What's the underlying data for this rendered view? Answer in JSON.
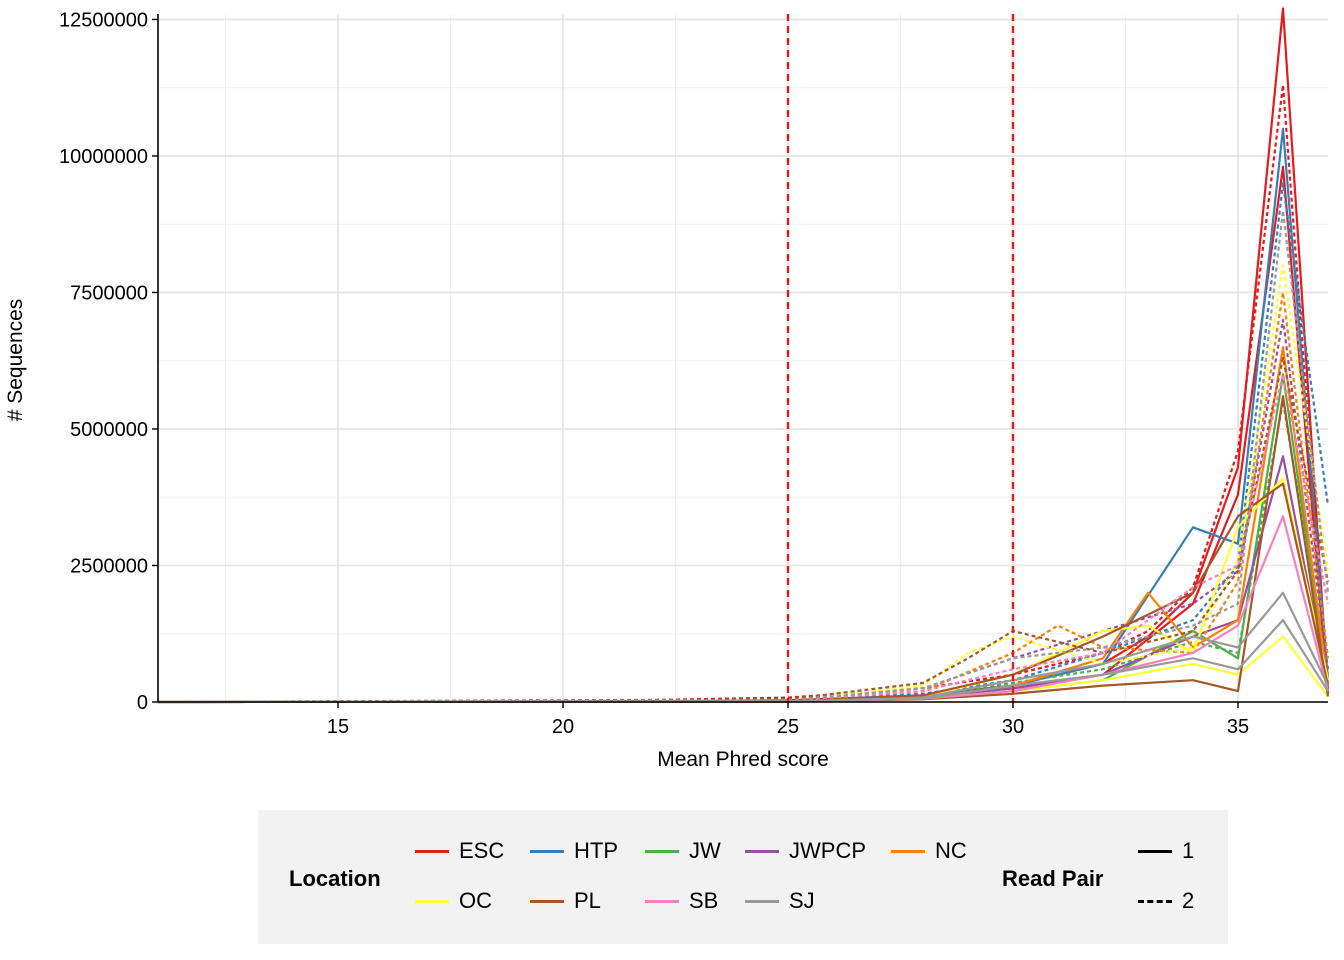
{
  "chart_data": {
    "type": "line",
    "xlabel": "Mean Phred score",
    "ylabel": "# Sequences",
    "xlim": [
      11,
      37
    ],
    "ylim": [
      0,
      12600000
    ],
    "x_ticks": [
      15,
      20,
      25,
      30,
      35
    ],
    "y_ticks": [
      0,
      2500000,
      5000000,
      7500000,
      10000000,
      12500000
    ],
    "y_tick_labels": [
      "0",
      "2500000",
      "5000000",
      "7500000",
      "10000000",
      "12500000"
    ],
    "x_tick_labels": [
      "15",
      "20",
      "25",
      "30",
      "35"
    ],
    "grid": true,
    "reference_lines": {
      "x": [
        25,
        30
      ],
      "color": "#e41a1c",
      "style": "dashed"
    },
    "legend_position": "bottom",
    "location_colors": {
      "ESC": "#e41a1c",
      "HTP": "#377eb8",
      "JW": "#4daf4a",
      "JWPCP": "#984ea3",
      "NC": "#ff7f00",
      "OC": "#ffff33",
      "PL": "#a65628",
      "SB": "#f781bf",
      "SJ": "#999999"
    },
    "series": [
      {
        "location": "ESC",
        "read_pair": "1",
        "x": [
          11,
          20,
          25,
          28,
          30,
          32,
          33,
          34,
          35,
          36,
          37
        ],
        "values": [
          0,
          5000,
          30000,
          120000,
          300000,
          700000,
          1200000,
          2000000,
          4300000,
          12700000,
          200000
        ]
      },
      {
        "location": "ESC",
        "read_pair": "2",
        "x": [
          11,
          20,
          25,
          28,
          30,
          32,
          33,
          34,
          35,
          36,
          37
        ],
        "values": [
          0,
          8000,
          80000,
          250000,
          500000,
          900000,
          1300000,
          2100000,
          4600000,
          11300000,
          300000
        ]
      },
      {
        "location": "ESC",
        "read_pair": "1",
        "x": [
          11,
          25,
          28,
          30,
          32,
          34,
          35,
          36,
          37
        ],
        "values": [
          0,
          20000,
          100000,
          250000,
          500000,
          1800000,
          3800000,
          9800000,
          150000
        ]
      },
      {
        "location": "HTP",
        "read_pair": "1",
        "x": [
          11,
          25,
          28,
          30,
          32,
          34,
          35,
          36,
          37
        ],
        "values": [
          0,
          15000,
          90000,
          300000,
          700000,
          3200000,
          2900000,
          10500000,
          400000
        ]
      },
      {
        "location": "HTP",
        "read_pair": "2",
        "x": [
          11,
          25,
          28,
          30,
          32,
          34,
          35,
          36,
          37
        ],
        "values": [
          0,
          30000,
          150000,
          400000,
          900000,
          1500000,
          2500000,
          9500000,
          3600000
        ]
      },
      {
        "location": "JW",
        "read_pair": "1",
        "x": [
          11,
          25,
          28,
          30,
          32,
          34,
          35,
          36,
          37
        ],
        "values": [
          0,
          10000,
          60000,
          200000,
          400000,
          1300000,
          800000,
          6000000,
          300000
        ]
      },
      {
        "location": "JW",
        "read_pair": "2",
        "x": [
          11,
          25,
          28,
          30,
          32,
          34,
          35,
          36,
          37
        ],
        "values": [
          0,
          20000,
          100000,
          350000,
          600000,
          1100000,
          900000,
          5500000,
          500000
        ]
      },
      {
        "location": "JWPCP",
        "read_pair": "1",
        "x": [
          11,
          25,
          28,
          30,
          32,
          34,
          35,
          36,
          37
        ],
        "values": [
          0,
          10000,
          70000,
          250000,
          500000,
          1200000,
          1500000,
          4500000,
          300000
        ]
      },
      {
        "location": "JWPCP",
        "read_pair": "2",
        "x": [
          11,
          25,
          28,
          30,
          32,
          34,
          35,
          36,
          37
        ],
        "values": [
          0,
          40000,
          250000,
          800000,
          1300000,
          1800000,
          2400000,
          7000000,
          600000
        ]
      },
      {
        "location": "NC",
        "read_pair": "1",
        "x": [
          11,
          25,
          28,
          30,
          32,
          33,
          34,
          35,
          36,
          37
        ],
        "values": [
          0,
          10000,
          60000,
          300000,
          800000,
          2000000,
          1000000,
          1500000,
          6500000,
          300000
        ]
      },
      {
        "location": "NC",
        "read_pair": "2",
        "x": [
          11,
          25,
          28,
          30,
          31,
          32,
          34,
          35,
          36,
          37
        ],
        "values": [
          0,
          30000,
          200000,
          900000,
          1400000,
          1000000,
          900000,
          2200000,
          7500000,
          800000
        ]
      },
      {
        "location": "OC",
        "read_pair": "1",
        "x": [
          11,
          25,
          28,
          30,
          32,
          33,
          34,
          35,
          36,
          37
        ],
        "values": [
          0,
          10000,
          100000,
          500000,
          1300000,
          1400000,
          900000,
          3200000,
          4100000,
          400000
        ]
      },
      {
        "location": "OC",
        "read_pair": "2",
        "x": [
          11,
          25,
          28,
          29,
          30,
          32,
          34,
          35,
          36,
          37
        ],
        "values": [
          0,
          40000,
          300000,
          900000,
          1200000,
          700000,
          1000000,
          2600000,
          8000000,
          2400000
        ]
      },
      {
        "location": "OC",
        "read_pair": "1",
        "x": [
          11,
          25,
          28,
          30,
          32,
          34,
          35,
          36,
          37
        ],
        "values": [
          0,
          10000,
          60000,
          200000,
          400000,
          700000,
          500000,
          1200000,
          100000
        ]
      },
      {
        "location": "PL",
        "read_pair": "1",
        "x": [
          11,
          25,
          28,
          30,
          32,
          34,
          35,
          36,
          37
        ],
        "values": [
          0,
          15000,
          120000,
          500000,
          1200000,
          2000000,
          3400000,
          4000000,
          300000
        ]
      },
      {
        "location": "PL",
        "read_pair": "2",
        "x": [
          11,
          25,
          28,
          29,
          30,
          32,
          34,
          35,
          36,
          37
        ],
        "values": [
          0,
          50000,
          350000,
          800000,
          1300000,
          900000,
          1300000,
          2400000,
          6300000,
          2200000
        ]
      },
      {
        "location": "PL",
        "read_pair": "1",
        "x": [
          11,
          25,
          28,
          30,
          32,
          34,
          35,
          36,
          37
        ],
        "values": [
          0,
          10000,
          50000,
          150000,
          300000,
          400000,
          200000,
          5600000,
          100000
        ]
      },
      {
        "location": "SB",
        "read_pair": "1",
        "x": [
          11,
          25,
          28,
          30,
          32,
          34,
          35,
          36,
          37
        ],
        "values": [
          0,
          10000,
          60000,
          200000,
          500000,
          900000,
          1400000,
          3400000,
          200000
        ]
      },
      {
        "location": "SB",
        "read_pair": "2",
        "x": [
          11,
          25,
          28,
          30,
          32,
          34,
          35,
          36,
          37
        ],
        "values": [
          0,
          30000,
          200000,
          600000,
          900000,
          2100000,
          2500000,
          6000000,
          1800000
        ]
      },
      {
        "location": "SJ",
        "read_pair": "1",
        "x": [
          11,
          25,
          28,
          30,
          32,
          34,
          35,
          36,
          37
        ],
        "values": [
          0,
          10000,
          80000,
          400000,
          700000,
          1200000,
          1000000,
          2000000,
          300000
        ]
      },
      {
        "location": "SJ",
        "read_pair": "2",
        "x": [
          11,
          25,
          28,
          30,
          32,
          34,
          35,
          36,
          37
        ],
        "values": [
          0,
          30000,
          250000,
          800000,
          1000000,
          1400000,
          1800000,
          9000000,
          2000000
        ]
      },
      {
        "location": "SJ",
        "read_pair": "1",
        "x": [
          11,
          25,
          28,
          30,
          32,
          34,
          35,
          36,
          37
        ],
        "values": [
          0,
          10000,
          60000,
          300000,
          500000,
          800000,
          600000,
          1500000,
          200000
        ]
      }
    ]
  },
  "legend": {
    "location_title": "Location",
    "location_items": [
      {
        "label": "ESC",
        "color": "#e41a1c"
      },
      {
        "label": "HTP",
        "color": "#377eb8"
      },
      {
        "label": "JW",
        "color": "#4daf4a"
      },
      {
        "label": "JWPCP",
        "color": "#984ea3"
      },
      {
        "label": "NC",
        "color": "#ff7f00"
      },
      {
        "label": "OC",
        "color": "#ffff33"
      },
      {
        "label": "PL",
        "color": "#a65628"
      },
      {
        "label": "SB",
        "color": "#f781bf"
      },
      {
        "label": "SJ",
        "color": "#999999"
      }
    ],
    "readpair_title": "Read Pair",
    "readpair_items": [
      {
        "label": "1",
        "style": "solid"
      },
      {
        "label": "2",
        "style": "dashed"
      }
    ]
  }
}
